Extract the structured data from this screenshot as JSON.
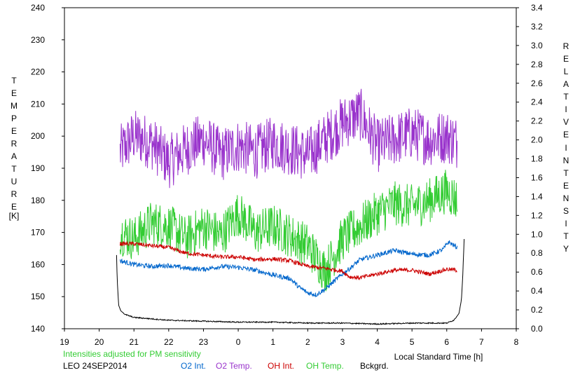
{
  "chart_data": {
    "type": "line",
    "left_axis": {
      "label_chars": [
        "T",
        "E",
        "M",
        "P",
        "E",
        "R",
        "A",
        "T",
        "U",
        "R",
        "E"
      ],
      "unit": "[K]",
      "ylim": [
        140,
        240
      ],
      "ticks": [
        140,
        150,
        160,
        170,
        180,
        190,
        200,
        210,
        220,
        230,
        240
      ]
    },
    "right_axis": {
      "label_word1": [
        "R",
        "E",
        "L",
        "A",
        "T",
        "I",
        "V",
        "E"
      ],
      "label_word2": [
        "I",
        "N",
        "T",
        "E",
        "N",
        "S",
        "I",
        "T",
        "Y"
      ],
      "ylim": [
        0.0,
        3.4
      ],
      "ticks": [
        "0.0",
        "0.2",
        "0.4",
        "0.6",
        "0.8",
        "1.0",
        "1.2",
        "1.4",
        "1.6",
        "1.8",
        "2.0",
        "2.2",
        "2.4",
        "2.6",
        "2.8",
        "3.0",
        "3.2",
        "3.4"
      ]
    },
    "x_axis": {
      "label": "Local Standard Time [h]",
      "tick_labels": [
        "19",
        "20",
        "21",
        "22",
        "23",
        "0",
        "1",
        "2",
        "3",
        "4",
        "5",
        "6",
        "7",
        "8"
      ]
    },
    "note": "Intensities adjusted for PM sensitivity",
    "station": "LEO 24SEP2014",
    "series": [
      {
        "name": "O2 Int.",
        "color": "#0066cc",
        "axis": "right",
        "x": [
          20.6,
          21.0,
          21.5,
          22.0,
          22.5,
          23.0,
          23.5,
          24.0,
          24.5,
          25.0,
          25.5,
          25.75,
          26.0,
          26.25,
          26.5,
          26.75,
          27.0,
          27.25,
          27.5,
          28.0,
          28.5,
          29.0,
          29.5,
          29.9,
          30.05,
          30.3
        ],
        "y": [
          0.72,
          0.68,
          0.66,
          0.67,
          0.64,
          0.63,
          0.66,
          0.65,
          0.62,
          0.57,
          0.53,
          0.44,
          0.38,
          0.36,
          0.42,
          0.5,
          0.58,
          0.65,
          0.73,
          0.78,
          0.83,
          0.79,
          0.78,
          0.84,
          0.92,
          0.86
        ]
      },
      {
        "name": "O2 Temp.",
        "color": "#9933cc",
        "axis": "left",
        "x": [
          20.6,
          21.0,
          21.5,
          22.0,
          22.5,
          23.0,
          23.5,
          24.0,
          24.5,
          25.0,
          25.5,
          26.0,
          26.5,
          27.0,
          27.5,
          28.0,
          28.5,
          29.0,
          29.5,
          30.0,
          30.3
        ],
        "y": [
          195,
          200,
          198,
          192,
          196,
          199,
          194,
          197,
          195,
          198,
          196,
          194,
          199,
          204,
          207,
          197,
          199,
          201,
          199,
          200,
          198
        ]
      },
      {
        "name": "OH Int.",
        "color": "#cc0000",
        "axis": "right",
        "x": [
          20.6,
          21.0,
          21.5,
          22.0,
          22.5,
          23.0,
          23.5,
          24.0,
          24.5,
          25.0,
          25.5,
          26.0,
          26.5,
          27.0,
          27.2,
          27.5,
          28.0,
          28.5,
          29.0,
          29.5,
          30.0,
          30.3
        ],
        "y": [
          0.9,
          0.9,
          0.88,
          0.86,
          0.8,
          0.78,
          0.76,
          0.76,
          0.73,
          0.74,
          0.72,
          0.66,
          0.64,
          0.61,
          0.55,
          0.54,
          0.58,
          0.62,
          0.62,
          0.58,
          0.63,
          0.62
        ]
      },
      {
        "name": "OH Temp.",
        "color": "#33cc33",
        "axis": "left",
        "x": [
          20.6,
          21.0,
          21.5,
          22.0,
          22.5,
          23.0,
          23.5,
          24.0,
          24.5,
          25.0,
          25.5,
          26.0,
          26.5,
          27.0,
          27.5,
          28.0,
          28.5,
          29.0,
          29.5,
          30.0,
          30.3
        ],
        "y": [
          170,
          168,
          173,
          172,
          168,
          172,
          169,
          176,
          170,
          172,
          169,
          166,
          158,
          168,
          172,
          176,
          179,
          178,
          180,
          183,
          180
        ]
      },
      {
        "name": "Bckgrd.",
        "color": "#000000",
        "axis": "right",
        "x": [
          20.5,
          20.52,
          20.56,
          20.62,
          20.75,
          21.0,
          22.0,
          23.0,
          24.0,
          25.0,
          26.0,
          27.0,
          28.0,
          29.0,
          30.0,
          30.2,
          30.35,
          30.42,
          30.46,
          30.5
        ],
        "y": [
          0.78,
          0.5,
          0.25,
          0.19,
          0.15,
          0.12,
          0.09,
          0.08,
          0.07,
          0.07,
          0.06,
          0.06,
          0.05,
          0.06,
          0.06,
          0.09,
          0.16,
          0.3,
          0.55,
          0.95
        ]
      }
    ]
  }
}
